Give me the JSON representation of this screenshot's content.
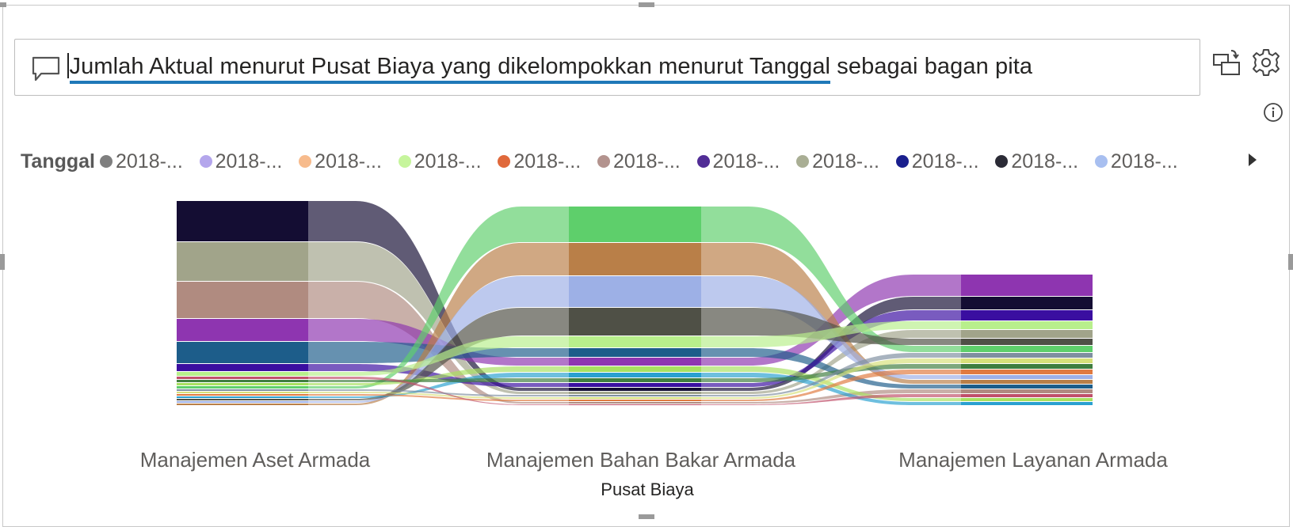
{
  "qa": {
    "query_underlined": "Jumlah Aktual menurut Pusat Biaya yang dikelompokkan menurut Tanggal",
    "query_rest": " sebagai bagan pita",
    "icon": "speech-bubble-icon"
  },
  "toolbar": {
    "icons": [
      "turn-into-visual-icon",
      "settings-gear-icon",
      "info-icon"
    ]
  },
  "legend": {
    "title": "Tanggal",
    "items": [
      {
        "label": "2018-...",
        "color": "#7f7f7f"
      },
      {
        "label": "2018-...",
        "color": "#b4a6ec"
      },
      {
        "label": "2018-...",
        "color": "#f7bb8c"
      },
      {
        "label": "2018-...",
        "color": "#c6f59c"
      },
      {
        "label": "2018-...",
        "color": "#e0693b"
      },
      {
        "label": "2018-...",
        "color": "#b3938e"
      },
      {
        "label": "2018-...",
        "color": "#512d96"
      },
      {
        "label": "2018-...",
        "color": "#a9ae94"
      },
      {
        "label": "2018-...",
        "color": "#1a1f8e"
      },
      {
        "label": "2018-...",
        "color": "#2b2b36"
      },
      {
        "label": "2018-...",
        "color": "#a8bff0"
      }
    ],
    "next_icon": "caret-right-icon"
  },
  "chart_data": {
    "type": "ribbon",
    "categories": [
      "Manajemen Aset Armada",
      "Manajemen Bahan Bakar Armada",
      "Manajemen Layanan Armada"
    ],
    "xlabel": "Pusat Biaya",
    "ylabel": "",
    "legend_title": "Tanggal",
    "legend_placement": "top",
    "grid": false,
    "series": [
      {
        "color": "#140d33",
        "values": [
          51,
          4,
          16
        ]
      },
      {
        "color": "#a1a48a",
        "values": [
          49,
          3,
          10
        ]
      },
      {
        "color": "#b08b80",
        "values": [
          46,
          2,
          5
        ]
      },
      {
        "color": "#8e35b0",
        "values": [
          28,
          10,
          27
        ]
      },
      {
        "color": "#1d5d8a",
        "values": [
          27,
          11,
          5
        ]
      },
      {
        "color": "#3a0ea0",
        "values": [
          9,
          5,
          13
        ]
      },
      {
        "color": "#5ecf6b",
        "values": [
          3,
          45,
          8
        ]
      },
      {
        "color": "#b97f48",
        "values": [
          2,
          41,
          5
        ]
      },
      {
        "color": "#9db0e6",
        "values": [
          2,
          39,
          5
        ]
      },
      {
        "color": "#4f5046",
        "values": [
          2,
          35,
          8
        ]
      },
      {
        "color": "#b8ef8c",
        "values": [
          5,
          14,
          10
        ]
      },
      {
        "color": "#2aa0d0",
        "values": [
          2,
          6,
          4
        ]
      },
      {
        "color": "#a8e060",
        "values": [
          3,
          7,
          4
        ]
      },
      {
        "color": "#e07a40",
        "values": [
          2,
          2,
          6
        ]
      },
      {
        "color": "#3f7d3f",
        "values": [
          3,
          5,
          6
        ]
      },
      {
        "color": "#d7e07a",
        "values": [
          2,
          2,
          6
        ]
      },
      {
        "color": "#c0506a",
        "values": [
          3,
          1,
          4
        ]
      },
      {
        "color": "#7f8fa0",
        "values": [
          2,
          2,
          6
        ]
      }
    ]
  }
}
